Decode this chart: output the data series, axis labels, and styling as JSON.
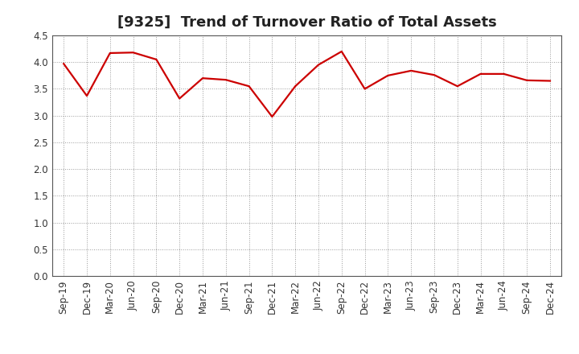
{
  "title": "[9325]  Trend of Turnover Ratio of Total Assets",
  "x_labels": [
    "Sep-19",
    "Dec-19",
    "Mar-20",
    "Jun-20",
    "Sep-20",
    "Dec-20",
    "Mar-21",
    "Jun-21",
    "Sep-21",
    "Dec-21",
    "Mar-22",
    "Jun-22",
    "Sep-22",
    "Dec-22",
    "Mar-23",
    "Jun-23",
    "Sep-23",
    "Dec-23",
    "Mar-24",
    "Jun-24",
    "Sep-24",
    "Dec-24"
  ],
  "y_values": [
    3.97,
    3.37,
    4.17,
    4.18,
    4.05,
    3.32,
    3.7,
    3.67,
    3.55,
    2.98,
    3.55,
    3.95,
    4.2,
    3.5,
    3.75,
    3.84,
    3.76,
    3.55,
    3.78,
    3.78,
    3.66,
    3.65
  ],
  "line_color": "#cc0000",
  "line_width": 1.6,
  "ylim": [
    0.0,
    4.5
  ],
  "yticks": [
    0.0,
    0.5,
    1.0,
    1.5,
    2.0,
    2.5,
    3.0,
    3.5,
    4.0,
    4.5
  ],
  "grid_color": "#999999",
  "bg_color": "#ffffff",
  "plot_bg_color": "#ffffff",
  "title_fontsize": 13,
  "tick_fontsize": 8.5,
  "title_color": "#222222"
}
